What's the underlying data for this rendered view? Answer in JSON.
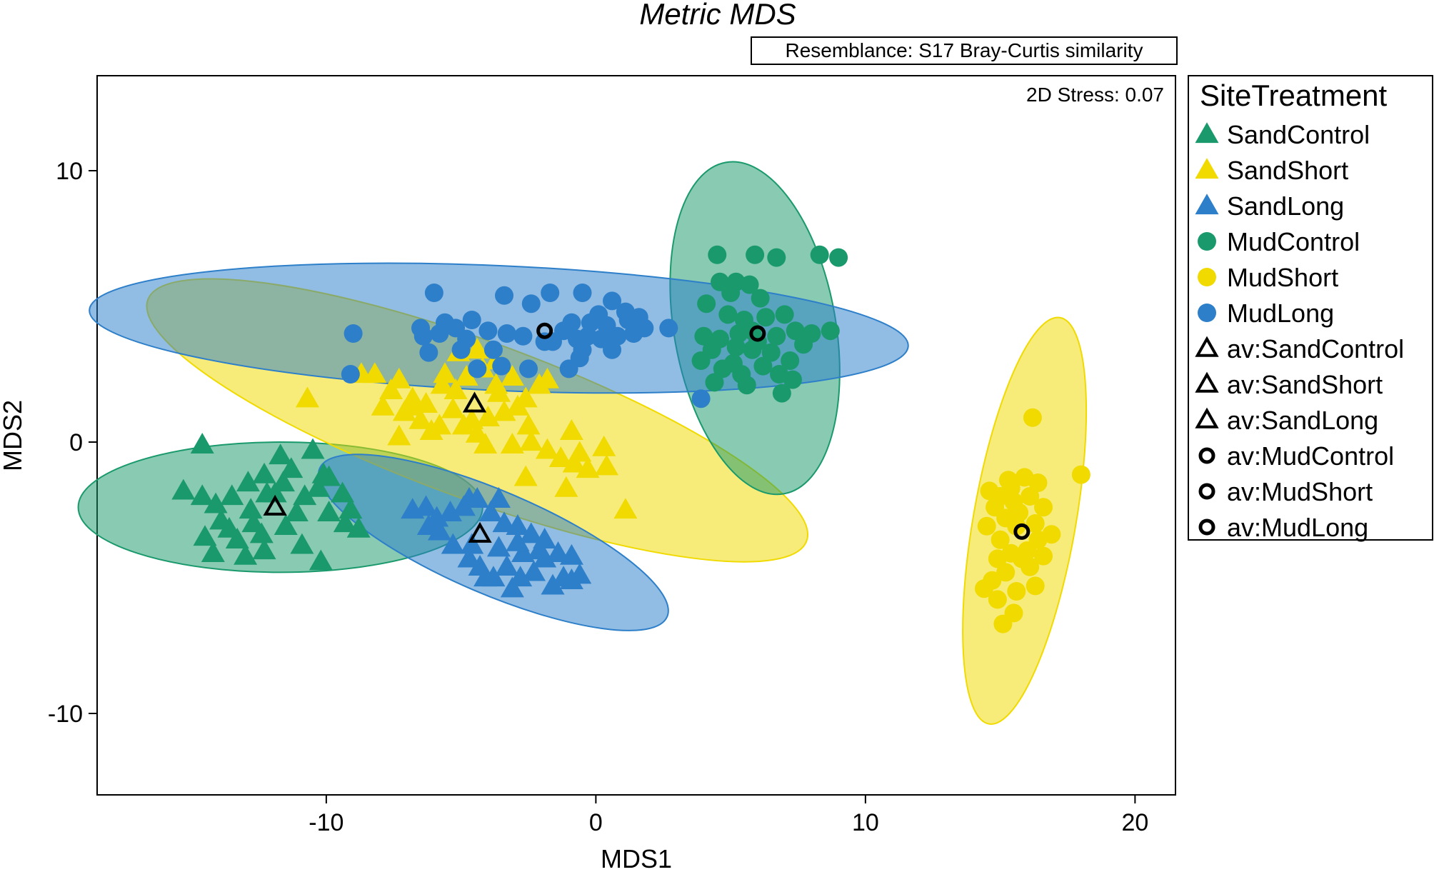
{
  "chart_data": {
    "type": "scatter",
    "title": "Metric MDS",
    "resemblance": "Resemblance: S17 Bray-Curtis similarity",
    "stress": "2D Stress: 0.07",
    "xlabel": "MDS1",
    "ylabel": "MDS2",
    "xlim": [
      -18.5,
      21.5
    ],
    "ylim": [
      -13.0,
      13.5
    ],
    "xticks": [
      -10,
      0,
      10,
      20
    ],
    "yticks": [
      10,
      0,
      -10
    ],
    "grid": false,
    "legend_title": "SiteTreatment",
    "legend_position": "right",
    "series": [
      {
        "name": "SandControl",
        "marker": "triangle",
        "color": "#1a9a6c",
        "points": [
          [
            -14.6,
            -0.1
          ],
          [
            -15.3,
            -1.8
          ],
          [
            -14.6,
            -2.0
          ],
          [
            -14.1,
            -2.3
          ],
          [
            -13.5,
            -2.0
          ],
          [
            -12.9,
            -1.5
          ],
          [
            -12.3,
            -1.2
          ],
          [
            -11.9,
            -1.9
          ],
          [
            -11.3,
            -1.0
          ],
          [
            -10.8,
            -2.0
          ],
          [
            -10.3,
            -1.7
          ],
          [
            -9.9,
            -1.3
          ],
          [
            -9.4,
            -1.9
          ],
          [
            -8.8,
            -3.2
          ],
          [
            -12.2,
            -1.9
          ],
          [
            -12.7,
            -3.0
          ],
          [
            -13.3,
            -3.6
          ],
          [
            -13.9,
            -2.9
          ],
          [
            -14.5,
            -3.5
          ],
          [
            -13.0,
            -4.2
          ],
          [
            -12.3,
            -4.0
          ],
          [
            -11.5,
            -3.1
          ],
          [
            -10.9,
            -3.8
          ],
          [
            -10.2,
            -4.4
          ],
          [
            -9.3,
            -3.0
          ],
          [
            -10.5,
            -0.3
          ],
          [
            -11.6,
            -1.5
          ],
          [
            -11.1,
            -2.6
          ],
          [
            -9.9,
            -2.6
          ],
          [
            -14.2,
            -4.1
          ],
          [
            -12.8,
            -2.5
          ],
          [
            -11.7,
            -0.5
          ],
          [
            -10.1,
            -1.2
          ],
          [
            -9.1,
            -2.5
          ],
          [
            -12.4,
            -3.4
          ],
          [
            -13.6,
            -3.2
          ]
        ]
      },
      {
        "name": "SandShort",
        "marker": "triangle",
        "color": "#f0da00",
        "points": [
          [
            -10.7,
            1.6
          ],
          [
            -8.7,
            2.5
          ],
          [
            -8.2,
            2.5
          ],
          [
            -7.6,
            1.9
          ],
          [
            -7.3,
            2.3
          ],
          [
            -6.8,
            1.6
          ],
          [
            -6.3,
            1.4
          ],
          [
            -5.7,
            2.1
          ],
          [
            -5.2,
            1.9
          ],
          [
            -4.8,
            2.4
          ],
          [
            -4.2,
            2.7
          ],
          [
            -3.7,
            2.1
          ],
          [
            -3.1,
            2.4
          ],
          [
            -2.6,
            1.6
          ],
          [
            -1.8,
            2.3
          ],
          [
            -5.1,
            3.3
          ],
          [
            -4.4,
            3.4
          ],
          [
            -3.7,
            3.0
          ],
          [
            -7.9,
            1.3
          ],
          [
            -7.1,
            1.1
          ],
          [
            -6.5,
            0.8
          ],
          [
            -5.8,
            0.6
          ],
          [
            -5.3,
            1.2
          ],
          [
            -4.6,
            0.8
          ],
          [
            -4.0,
            0.9
          ],
          [
            -3.4,
            1.1
          ],
          [
            -2.9,
            1.3
          ],
          [
            -2.5,
            0.6
          ],
          [
            -7.3,
            0.2
          ],
          [
            -6.1,
            0.4
          ],
          [
            -4.9,
            0.6
          ],
          [
            -4.1,
            -0.1
          ],
          [
            -3.1,
            -0.1
          ],
          [
            -2.4,
            0.0
          ],
          [
            -1.8,
            -0.3
          ],
          [
            -1.3,
            -0.6
          ],
          [
            -0.9,
            0.4
          ],
          [
            -0.8,
            -0.8
          ],
          [
            -0.3,
            -1.0
          ],
          [
            0.3,
            -0.2
          ],
          [
            0.4,
            -0.9
          ],
          [
            -2.6,
            -1.3
          ],
          [
            -1.1,
            -1.7
          ],
          [
            1.1,
            -2.5
          ],
          [
            -6.8,
            1.3
          ],
          [
            -3.6,
            1.8
          ],
          [
            -5.6,
            2.5
          ],
          [
            -2.1,
            2.1
          ],
          [
            -4.4,
            0.3
          ],
          [
            -0.6,
            -0.4
          ]
        ]
      },
      {
        "name": "SandLong",
        "marker": "triangle",
        "color": "#2d7fc9",
        "points": [
          [
            -6.8,
            -2.5
          ],
          [
            -6.3,
            -2.4
          ],
          [
            -5.9,
            -2.8
          ],
          [
            -5.4,
            -2.6
          ],
          [
            -4.9,
            -2.4
          ],
          [
            -4.4,
            -2.1
          ],
          [
            -3.9,
            -2.6
          ],
          [
            -3.4,
            -3.0
          ],
          [
            -2.9,
            -3.1
          ],
          [
            -2.4,
            -3.4
          ],
          [
            -1.9,
            -3.6
          ],
          [
            -1.4,
            -4.1
          ],
          [
            -0.9,
            -4.2
          ],
          [
            -0.6,
            -4.9
          ],
          [
            -0.9,
            -5.1
          ],
          [
            -1.6,
            -5.3
          ],
          [
            -2.3,
            -4.8
          ],
          [
            -2.8,
            -5.0
          ],
          [
            -3.3,
            -4.6
          ],
          [
            -3.8,
            -5.0
          ],
          [
            -4.3,
            -4.6
          ],
          [
            -4.7,
            -4.3
          ],
          [
            -5.3,
            -3.8
          ],
          [
            -5.8,
            -3.3
          ],
          [
            -6.2,
            -3.1
          ],
          [
            -4.6,
            -3.8
          ],
          [
            -3.6,
            -3.9
          ],
          [
            -2.7,
            -4.1
          ],
          [
            -1.9,
            -4.3
          ],
          [
            -4.1,
            -5.0
          ],
          [
            -3.1,
            -5.4
          ],
          [
            -3.6,
            -2.1
          ],
          [
            -4.7,
            -2.1
          ],
          [
            -2.1,
            -4.0
          ],
          [
            -1.2,
            -5.0
          ],
          [
            -2.9,
            -3.7
          ]
        ]
      },
      {
        "name": "MudControl",
        "marker": "circle",
        "color": "#1a9a6c",
        "points": [
          [
            4.5,
            6.9
          ],
          [
            5.9,
            6.9
          ],
          [
            6.7,
            6.8
          ],
          [
            8.3,
            6.9
          ],
          [
            9.0,
            6.8
          ],
          [
            4.6,
            5.9
          ],
          [
            5.2,
            5.9
          ],
          [
            5.7,
            5.8
          ],
          [
            6.1,
            5.3
          ],
          [
            5.0,
            5.5
          ],
          [
            4.1,
            5.1
          ],
          [
            4.9,
            4.7
          ],
          [
            5.5,
            4.5
          ],
          [
            6.3,
            4.6
          ],
          [
            7.0,
            4.7
          ],
          [
            7.4,
            4.1
          ],
          [
            8.0,
            4.0
          ],
          [
            8.7,
            4.1
          ],
          [
            4.0,
            3.9
          ],
          [
            4.6,
            3.8
          ],
          [
            5.2,
            3.5
          ],
          [
            5.8,
            3.4
          ],
          [
            6.5,
            3.3
          ],
          [
            7.2,
            3.0
          ],
          [
            3.9,
            3.0
          ],
          [
            4.7,
            2.7
          ],
          [
            5.4,
            2.5
          ],
          [
            6.2,
            2.8
          ],
          [
            6.8,
            2.5
          ],
          [
            7.3,
            2.3
          ],
          [
            5.6,
            2.1
          ],
          [
            4.4,
            2.2
          ],
          [
            6.9,
            1.8
          ],
          [
            5.1,
            2.9
          ],
          [
            6.7,
            3.9
          ],
          [
            7.7,
            3.6
          ],
          [
            5.8,
            4.1
          ],
          [
            4.3,
            3.4
          ],
          [
            6.0,
            3.7
          ],
          [
            5.3,
            4.0
          ]
        ]
      },
      {
        "name": "MudShort",
        "marker": "circle",
        "color": "#f0da00",
        "points": [
          [
            16.2,
            0.9
          ],
          [
            18.0,
            -1.2
          ],
          [
            15.3,
            -1.4
          ],
          [
            15.9,
            -1.3
          ],
          [
            16.4,
            -1.5
          ],
          [
            14.6,
            -1.8
          ],
          [
            15.0,
            -2.0
          ],
          [
            15.5,
            -2.2
          ],
          [
            16.1,
            -2.0
          ],
          [
            16.6,
            -2.4
          ],
          [
            14.8,
            -2.4
          ],
          [
            15.2,
            -2.8
          ],
          [
            15.6,
            -3.1
          ],
          [
            16.3,
            -3.0
          ],
          [
            16.9,
            -3.4
          ],
          [
            14.5,
            -3.1
          ],
          [
            15.0,
            -3.6
          ],
          [
            15.4,
            -4.1
          ],
          [
            16.0,
            -4.0
          ],
          [
            16.6,
            -4.2
          ],
          [
            16.1,
            -4.6
          ],
          [
            15.2,
            -4.8
          ],
          [
            14.7,
            -5.1
          ],
          [
            15.6,
            -5.5
          ],
          [
            16.3,
            -5.3
          ],
          [
            14.4,
            -5.4
          ],
          [
            14.9,
            -5.8
          ],
          [
            15.5,
            -6.3
          ],
          [
            15.1,
            -6.7
          ],
          [
            15.7,
            -2.6
          ],
          [
            15.8,
            -4.3
          ],
          [
            16.4,
            -3.6
          ],
          [
            14.9,
            -4.3
          ],
          [
            15.4,
            -1.7
          ]
        ]
      },
      {
        "name": "MudLong",
        "marker": "circle",
        "color": "#2d7fc9",
        "points": [
          [
            -9.0,
            4.0
          ],
          [
            -9.1,
            2.5
          ],
          [
            -6.0,
            5.5
          ],
          [
            -5.6,
            4.4
          ],
          [
            -5.2,
            4.2
          ],
          [
            -6.5,
            4.2
          ],
          [
            -3.4,
            5.4
          ],
          [
            -2.4,
            5.1
          ],
          [
            -1.7,
            5.5
          ],
          [
            -0.5,
            5.5
          ],
          [
            0.1,
            4.7
          ],
          [
            0.6,
            5.2
          ],
          [
            1.1,
            4.8
          ],
          [
            1.8,
            4.2
          ],
          [
            2.7,
            4.2
          ],
          [
            -4.0,
            4.1
          ],
          [
            -3.3,
            4.0
          ],
          [
            -2.7,
            3.9
          ],
          [
            -1.2,
            4.1
          ],
          [
            -0.9,
            4.4
          ],
          [
            -0.3,
            3.9
          ],
          [
            0.4,
            4.3
          ],
          [
            0.8,
            3.9
          ],
          [
            1.4,
            4.0
          ],
          [
            -6.4,
            3.9
          ],
          [
            -4.8,
            3.8
          ],
          [
            -3.8,
            3.4
          ],
          [
            -1.9,
            3.7
          ],
          [
            -0.5,
            3.4
          ],
          [
            0.6,
            3.4
          ],
          [
            -6.2,
            3.3
          ],
          [
            -4.4,
            2.7
          ],
          [
            -3.5,
            2.8
          ],
          [
            -2.5,
            2.7
          ],
          [
            -1.0,
            2.7
          ],
          [
            -0.6,
            3.1
          ],
          [
            -5.8,
            4.0
          ],
          [
            -4.6,
            4.5
          ],
          [
            0.2,
            3.8
          ],
          [
            1.2,
            4.5
          ],
          [
            3.9,
            1.6
          ],
          [
            -0.7,
            3.8
          ],
          [
            -1.6,
            3.7
          ],
          [
            1.6,
            4.6
          ],
          [
            -5.0,
            3.4
          ],
          [
            -0.2,
            4.4
          ]
        ]
      },
      {
        "name": "av:SandControl",
        "marker": "open-triangle",
        "color": "#000000",
        "points": [
          [
            -11.9,
            -2.4
          ]
        ]
      },
      {
        "name": "av:SandShort",
        "marker": "open-triangle",
        "color": "#000000",
        "points": [
          [
            -4.5,
            1.4
          ]
        ]
      },
      {
        "name": "av:SandLong",
        "marker": "open-triangle",
        "color": "#000000",
        "points": [
          [
            -4.3,
            -3.4
          ]
        ]
      },
      {
        "name": "av:MudControl",
        "marker": "open-circle",
        "color": "#000000",
        "points": [
          [
            6.0,
            4.0
          ]
        ]
      },
      {
        "name": "av:MudShort",
        "marker": "open-circle",
        "color": "#000000",
        "points": [
          [
            15.8,
            -3.3
          ]
        ]
      },
      {
        "name": "av:MudLong",
        "marker": "open-circle",
        "color": "#000000",
        "points": [
          [
            -1.9,
            4.1
          ]
        ]
      }
    ],
    "ellipses": [
      {
        "group": "SandControl",
        "color": "#1a9a6c",
        "center": [
          -11.7,
          -2.4
        ],
        "semi_axes": [
          7.5,
          2.4
        ],
        "angle_deg": 0
      },
      {
        "group": "SandShort",
        "color": "#f0da00",
        "center": [
          -4.4,
          0.8
        ],
        "semi_axes": [
          13.0,
          2.9
        ],
        "angle_deg": -20
      },
      {
        "group": "SandLong",
        "color": "#2d7fc9",
        "center": [
          -3.8,
          -3.7
        ],
        "semi_axes": [
          7.0,
          1.9
        ],
        "angle_deg": -23
      },
      {
        "group": "MudControl",
        "color": "#1a9a6c",
        "center": [
          5.9,
          4.2
        ],
        "semi_axes": [
          6.2,
          3.0
        ],
        "angle_deg": 100
      },
      {
        "group": "MudShort",
        "color": "#f0da00",
        "center": [
          15.9,
          -2.9
        ],
        "semi_axes": [
          7.6,
          1.9
        ],
        "angle_deg": 80
      },
      {
        "group": "MudLong",
        "color": "#2d7fc9",
        "center": [
          -3.6,
          4.2
        ],
        "semi_axes": [
          15.2,
          2.3
        ],
        "angle_deg": -2.5
      }
    ]
  }
}
